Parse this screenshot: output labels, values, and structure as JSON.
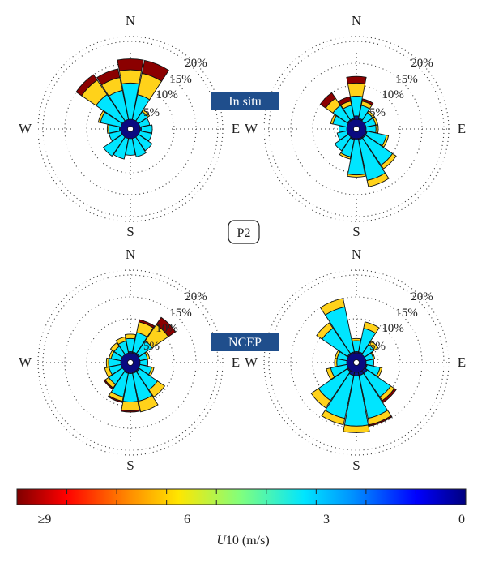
{
  "figure": {
    "row_labels": [
      "In situ",
      "NCEP"
    ],
    "center_label": "P2",
    "colorbar": {
      "title_italic": "U",
      "title_rest": "10 (m/s)",
      "ticks": [
        "≥9",
        "6",
        "3",
        "0"
      ],
      "tick_values": [
        9,
        6,
        3,
        0
      ],
      "range": [
        0,
        9
      ],
      "scale": "jet, reversed (0 = dark blue on right, ≥9 = dark red on left)"
    }
  },
  "chart_data": [
    {
      "type": "windrose",
      "panel": "in-situ-left",
      "directions": [
        "N",
        "E",
        "S",
        "W"
      ],
      "radial_ticks": [
        "5%",
        "10%",
        "15%",
        "20%"
      ],
      "radial_values": [
        5,
        10,
        15,
        20
      ],
      "sectors": 16,
      "sector_angles_deg": [
        0,
        22.5,
        45,
        67.5,
        90,
        112.5,
        135,
        157.5,
        180,
        202.5,
        225,
        247.5,
        270,
        292.5,
        315,
        337.5
      ],
      "speed_bins": [
        "0-3",
        "3-6",
        "6-9",
        "≥9"
      ],
      "series": [
        {
          "name": "0-3",
          "values": [
            2.0,
            2.0,
            2.0,
            2.0,
            2.5,
            2.0,
            2.0,
            2.0,
            2.0,
            2.0,
            2.0,
            2.0,
            2.5,
            2.0,
            2.0,
            2.0
          ]
        },
        {
          "name": "3-6",
          "values": [
            8.5,
            6.0,
            2.8,
            2.5,
            2.5,
            3.0,
            4.0,
            4.5,
            4.0,
            5.0,
            5.5,
            3.0,
            2.5,
            5.0,
            7.5,
            7.0
          ]
        },
        {
          "name": "6-9",
          "values": [
            3.0,
            5.0,
            0.5,
            0.0,
            0.0,
            0.0,
            0.0,
            0.0,
            0.0,
            0.0,
            0.0,
            0.0,
            0.3,
            0.5,
            4.0,
            3.0
          ]
        },
        {
          "name": "≥9",
          "values": [
            2.5,
            3.0,
            0.0,
            0.0,
            0.0,
            0.0,
            0.0,
            0.0,
            0.0,
            0.0,
            0.0,
            0.0,
            0.0,
            0.0,
            1.5,
            2.0
          ]
        }
      ],
      "cumulative": [
        16.0,
        16.0,
        5.3,
        4.5,
        5.0,
        5.0,
        6.0,
        6.5,
        6.0,
        7.0,
        7.5,
        5.0,
        5.3,
        7.5,
        15.0,
        14.0
      ]
    },
    {
      "type": "windrose",
      "panel": "in-situ-right",
      "directions": [
        "N",
        "E",
        "S",
        "W"
      ],
      "radial_ticks": [
        "5%",
        "10%",
        "15%",
        "20%"
      ],
      "radial_values": [
        5,
        10,
        15,
        20
      ],
      "sectors": 16,
      "sector_angles_deg": [
        0,
        22.5,
        45,
        67.5,
        90,
        112.5,
        135,
        157.5,
        180,
        202.5,
        225,
        247.5,
        270,
        292.5,
        315,
        337.5
      ],
      "speed_bins": [
        "0-3",
        "3-6",
        "6-9",
        "≥9"
      ],
      "series": [
        {
          "name": "0-3",
          "values": [
            3.0,
            2.5,
            2.0,
            2.0,
            2.0,
            2.5,
            2.5,
            2.5,
            2.5,
            2.5,
            2.0,
            2.0,
            2.0,
            2.0,
            2.5,
            2.5
          ]
        },
        {
          "name": "3-6",
          "values": [
            4.5,
            3.0,
            2.5,
            2.5,
            2.5,
            4.5,
            7.5,
            9.5,
            8.0,
            4.0,
            4.0,
            2.5,
            2.0,
            3.5,
            4.0,
            3.0
          ]
        },
        {
          "name": "6-9",
          "values": [
            3.0,
            1.0,
            0.5,
            0.5,
            0.5,
            0.5,
            1.0,
            1.5,
            0.5,
            0.5,
            0.0,
            0.0,
            0.0,
            0.5,
            2.0,
            1.0
          ]
        },
        {
          "name": "≥9",
          "values": [
            1.5,
            0.5,
            0.0,
            0.0,
            0.0,
            0.0,
            0.0,
            0.0,
            0.0,
            0.0,
            0.0,
            0.0,
            0.0,
            0.0,
            1.5,
            1.0
          ]
        }
      ],
      "cumulative": [
        12.0,
        7.0,
        5.0,
        5.0,
        5.0,
        7.5,
        11.0,
        13.5,
        11.0,
        7.0,
        6.0,
        4.5,
        4.0,
        6.0,
        10.0,
        7.5
      ]
    },
    {
      "type": "windrose",
      "panel": "ncep-left",
      "directions": [
        "N",
        "E",
        "S",
        "W"
      ],
      "radial_ticks": [
        "5%",
        "10%",
        "15%",
        "20%"
      ],
      "radial_values": [
        5,
        10,
        15,
        20
      ],
      "sectors": 16,
      "sector_angles_deg": [
        0,
        22.5,
        45,
        67.5,
        90,
        112.5,
        135,
        157.5,
        180,
        202.5,
        225,
        247.5,
        270,
        292.5,
        315,
        337.5
      ],
      "speed_bins": [
        "0-3",
        "3-6",
        "6-9",
        "≥9"
      ],
      "series": [
        {
          "name": "0-3",
          "values": [
            2.5,
            2.5,
            2.5,
            2.0,
            2.0,
            2.0,
            2.5,
            2.5,
            2.5,
            2.5,
            2.0,
            2.0,
            2.0,
            2.0,
            2.0,
            2.0
          ]
        },
        {
          "name": "3-6",
          "values": [
            3.0,
            4.5,
            3.5,
            2.0,
            2.0,
            3.0,
            5.0,
            6.5,
            6.5,
            5.5,
            4.0,
            3.0,
            3.0,
            2.5,
            2.5,
            3.0
          ]
        },
        {
          "name": "6-9",
          "values": [
            1.0,
            2.5,
            4.5,
            0.5,
            0.0,
            0.5,
            2.0,
            2.5,
            2.0,
            1.0,
            1.0,
            1.0,
            0.5,
            0.5,
            1.0,
            1.0
          ]
        },
        {
          "name": "≥9",
          "values": [
            0.0,
            0.5,
            2.0,
            0.0,
            0.0,
            0.0,
            0.0,
            0.0,
            0.3,
            0.3,
            0.3,
            0.0,
            0.0,
            0.0,
            0.0,
            0.0
          ]
        }
      ],
      "cumulative": [
        6.5,
        10.0,
        12.5,
        4.5,
        4.0,
        5.5,
        9.5,
        11.5,
        11.3,
        9.3,
        7.3,
        6.0,
        5.5,
        5.0,
        5.5,
        6.0
      ]
    },
    {
      "type": "windrose",
      "panel": "ncep-right",
      "directions": [
        "N",
        "E",
        "S",
        "W"
      ],
      "radial_ticks": [
        "5%",
        "10%",
        "15%",
        "20%"
      ],
      "radial_values": [
        5,
        10,
        15,
        20
      ],
      "sectors": 16,
      "sector_angles_deg": [
        0,
        22.5,
        45,
        67.5,
        90,
        112.5,
        135,
        157.5,
        180,
        202.5,
        225,
        247.5,
        270,
        292.5,
        315,
        337.5
      ],
      "speed_bins": [
        "0-3",
        "3-6",
        "6-9",
        "≥9"
      ],
      "series": [
        {
          "name": "0-3",
          "values": [
            2.5,
            2.5,
            2.0,
            2.0,
            2.0,
            2.5,
            3.0,
            3.0,
            3.0,
            3.0,
            2.5,
            2.0,
            2.0,
            2.0,
            2.5,
            2.5
          ]
        },
        {
          "name": "3-6",
          "values": [
            2.5,
            5.5,
            3.0,
            2.0,
            2.0,
            3.0,
            6.5,
            10.0,
            11.5,
            10.0,
            8.0,
            4.0,
            2.5,
            2.5,
            7.0,
            10.5
          ]
        },
        {
          "name": "6-9",
          "values": [
            0.5,
            1.5,
            1.0,
            0.3,
            0.0,
            0.5,
            1.0,
            1.5,
            1.5,
            1.5,
            2.0,
            1.0,
            0.5,
            0.5,
            1.5,
            2.0
          ]
        },
        {
          "name": "≥9",
          "values": [
            0.0,
            0.0,
            0.0,
            0.0,
            0.0,
            0.0,
            0.5,
            0.3,
            0.0,
            0.0,
            0.0,
            0.0,
            0.0,
            0.0,
            0.0,
            0.0
          ]
        }
      ],
      "cumulative": [
        5.5,
        9.5,
        6.0,
        4.3,
        4.0,
        6.0,
        11.0,
        14.8,
        16.0,
        14.5,
        12.5,
        7.0,
        5.0,
        5.0,
        11.0,
        15.0
      ]
    }
  ]
}
